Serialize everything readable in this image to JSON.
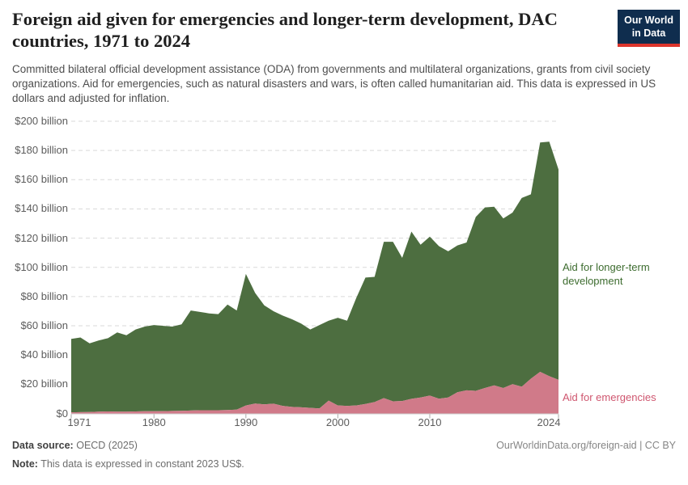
{
  "header": {
    "title": "Foreign aid given for emergencies and longer-term development, DAC countries, 1971 to 2024",
    "subtitle": "Committed bilateral official development assistance (ODA) from governments and multilateral organizations, grants from civil society organizations. Aid for emergencies, such as natural disasters and wars, is often called humanitarian aid. This data is expressed in US dollars and adjusted for inflation.",
    "logo": {
      "line1": "Our World",
      "line2": "in Data",
      "bg_color": "#0f2d4e",
      "accent_color": "#dc352c"
    }
  },
  "chart_data": {
    "type": "area",
    "stacked": true,
    "title": "Foreign aid given for emergencies and longer-term development, DAC countries, 1971 to 2024",
    "x_start_year": 1971,
    "x_end_year": 2024,
    "ylim": [
      0,
      200
    ],
    "grid": true,
    "grid_color": "#d9d9d9",
    "yticks": [
      {
        "value": 0,
        "label": "$0"
      },
      {
        "value": 20,
        "label": "$20 billion"
      },
      {
        "value": 40,
        "label": "$40 billion"
      },
      {
        "value": 60,
        "label": "$60 billion"
      },
      {
        "value": 80,
        "label": "$80 billion"
      },
      {
        "value": 100,
        "label": "$100 billion"
      },
      {
        "value": 120,
        "label": "$120 billion"
      },
      {
        "value": 140,
        "label": "$140 billion"
      },
      {
        "value": 160,
        "label": "$160 billion"
      },
      {
        "value": 180,
        "label": "$180 billion"
      },
      {
        "value": 200,
        "label": "$200 billion"
      }
    ],
    "xticks": [
      {
        "value": 1971,
        "label": "1971"
      },
      {
        "value": 1980,
        "label": "1980"
      },
      {
        "value": 1990,
        "label": "1990"
      },
      {
        "value": 2000,
        "label": "2000"
      },
      {
        "value": 2010,
        "label": "2010"
      },
      {
        "value": 2024,
        "label": "2024"
      }
    ],
    "series": [
      {
        "name": "Aid for emergencies",
        "color": "#d07a89",
        "label_color": "#cf566f",
        "values": [
          0.8,
          0.9,
          1.0,
          1.2,
          1.4,
          1.3,
          1.3,
          1.4,
          1.5,
          1.5,
          1.6,
          1.7,
          1.8,
          2.0,
          2.2,
          2.2,
          2.2,
          2.3,
          2.6,
          5.5,
          6.8,
          6.2,
          6.7,
          5.2,
          4.5,
          4.2,
          3.8,
          3.5,
          8.8,
          5.5,
          5.2,
          5.5,
          6.5,
          7.8,
          10.5,
          8.3,
          8.5,
          10.0,
          10.9,
          12.2,
          10.1,
          10.9,
          14.5,
          15.8,
          15.5,
          17.4,
          19.2,
          17.4,
          20.1,
          18.3,
          23.8,
          28.5,
          25.5,
          23.0
        ]
      },
      {
        "name": "Aid for longer-term development",
        "color": "#4d6e40",
        "label_color": "#3d6c2f",
        "values": [
          50.2,
          51.1,
          47.0,
          48.8,
          50.1,
          54.2,
          52.2,
          56.1,
          58.0,
          59.0,
          58.4,
          57.8,
          59.2,
          68.5,
          67.3,
          66.3,
          65.8,
          72.2,
          67.9,
          90.0,
          75.7,
          67.8,
          63.3,
          61.8,
          60.0,
          57.3,
          53.7,
          57.0,
          54.7,
          60.0,
          58.3,
          73.5,
          86.5,
          85.7,
          107.0,
          109.2,
          98.0,
          114.5,
          104.6,
          108.8,
          104.4,
          100.1,
          100.5,
          101.2,
          119.0,
          123.6,
          122.3,
          116.1,
          117.4,
          129.2,
          126.2,
          157.0,
          160.5,
          144.0
        ]
      }
    ]
  },
  "footer": {
    "source_label": "Data source:",
    "source_value": "OECD (2025)",
    "note_label": "Note:",
    "note_value": "This data is expressed in constant 2023 US$.",
    "attribution": "OurWorldinData.org/foreign-aid | CC BY"
  }
}
